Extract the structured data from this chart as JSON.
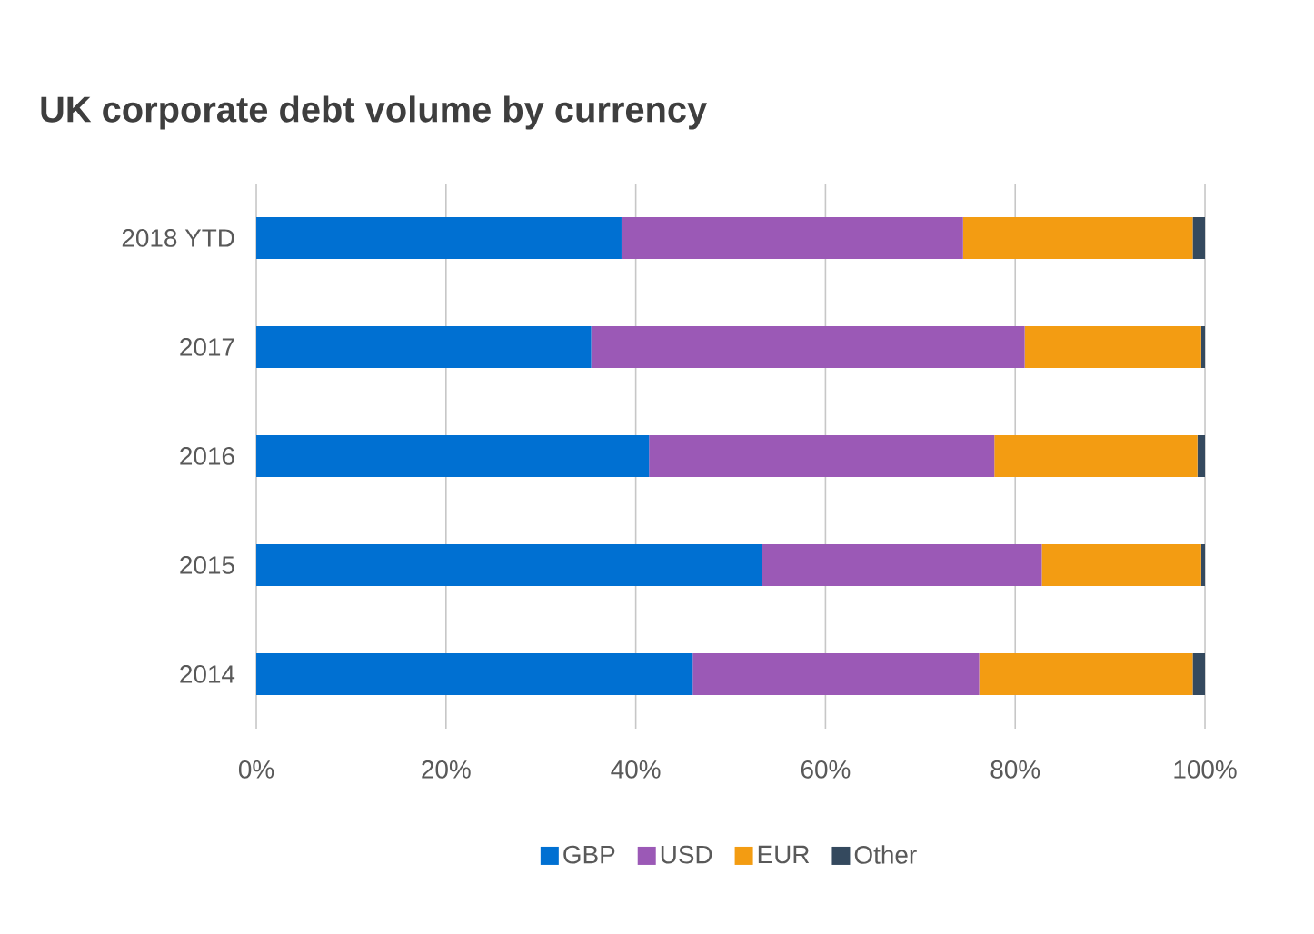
{
  "chart_data": {
    "type": "bar",
    "orientation": "horizontal",
    "stacked": true,
    "title": "UK corporate debt volume by currency",
    "categories": [
      "2018 YTD",
      "2017",
      "2016",
      "2015",
      "2014"
    ],
    "series": [
      {
        "name": "GBP",
        "color": "#0070d2",
        "values": [
          38.5,
          35.3,
          41.4,
          53.3,
          46.0
        ]
      },
      {
        "name": "USD",
        "color": "#9b59b6",
        "values": [
          36.0,
          45.7,
          36.4,
          29.5,
          30.2
        ]
      },
      {
        "name": "EUR",
        "color": "#f39c12",
        "values": [
          24.2,
          18.6,
          21.4,
          16.8,
          22.5
        ]
      },
      {
        "name": "Other",
        "color": "#34495e",
        "values": [
          1.3,
          0.4,
          0.8,
          0.4,
          1.3
        ]
      }
    ],
    "xlim": [
      0,
      100
    ],
    "xticks": [
      {
        "value": 0,
        "label": "0%"
      },
      {
        "value": 20,
        "label": "20%"
      },
      {
        "value": 40,
        "label": "40%"
      },
      {
        "value": 60,
        "label": "60%"
      },
      {
        "value": 80,
        "label": "80%"
      },
      {
        "value": 100,
        "label": "100%"
      }
    ],
    "grid": "x",
    "legend": "bottom"
  }
}
